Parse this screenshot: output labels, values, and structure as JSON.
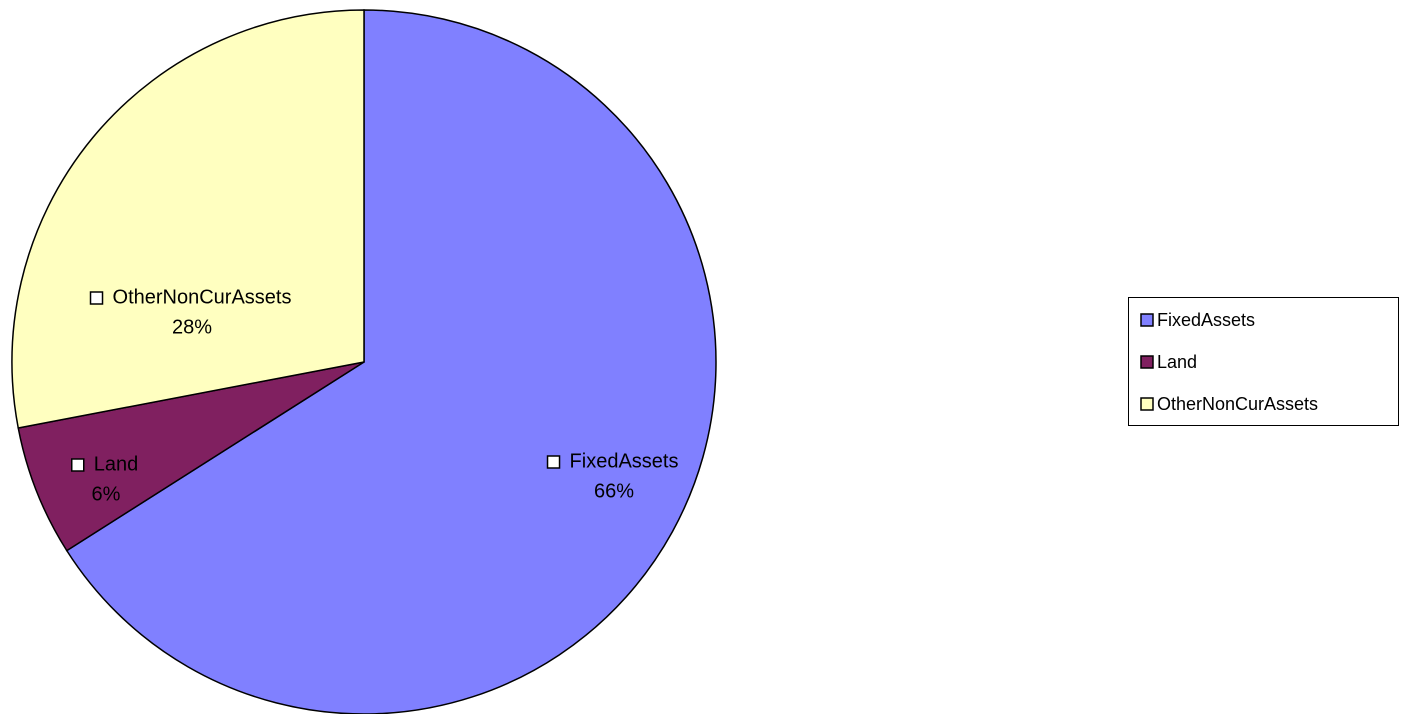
{
  "chart_data": {
    "type": "pie",
    "categories": [
      "FixedAssets",
      "Land",
      "OtherNonCurAssets"
    ],
    "values": [
      66,
      6,
      28
    ],
    "value_labels": [
      "66%",
      "6%",
      "28%"
    ],
    "colors": [
      "#8080ff",
      "#802060",
      "#ffffc0"
    ],
    "legend": "right"
  }
}
